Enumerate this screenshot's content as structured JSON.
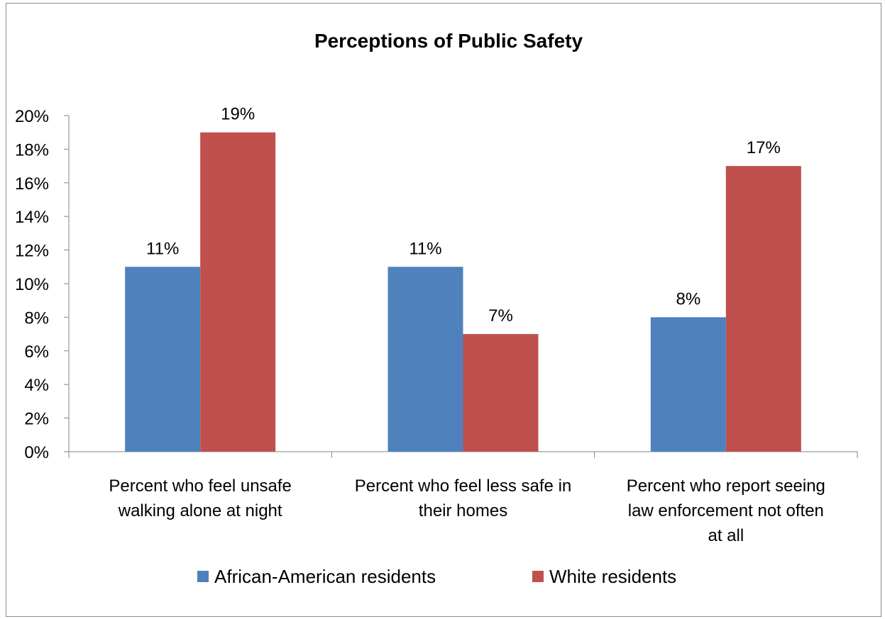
{
  "chart_data": {
    "type": "bar",
    "title": "Perceptions of Public Safety",
    "xlabel": "",
    "ylabel": "",
    "ylim": [
      0,
      20
    ],
    "y_tick_step": 2,
    "y_tick_format": "percent",
    "grid": false,
    "legend_position": "bottom",
    "categories": [
      [
        "Percent who feel unsafe",
        "walking alone at night"
      ],
      [
        "Percent who feel less safe in",
        "their homes"
      ],
      [
        "Percent who report seeing",
        "law enforcement not often",
        "at all"
      ]
    ],
    "series": [
      {
        "name": "African-American residents",
        "color": "#4f81bd",
        "values": [
          11,
          11,
          8
        ],
        "labels": [
          "11%",
          "11%",
          "8%"
        ]
      },
      {
        "name": "White residents",
        "color": "#c0504d",
        "values": [
          19,
          7,
          17
        ],
        "labels": [
          "19%",
          "7%",
          "17%"
        ]
      }
    ],
    "y_tick_labels": [
      "0%",
      "2%",
      "4%",
      "6%",
      "8%",
      "10%",
      "12%",
      "14%",
      "16%",
      "18%",
      "20%"
    ]
  }
}
